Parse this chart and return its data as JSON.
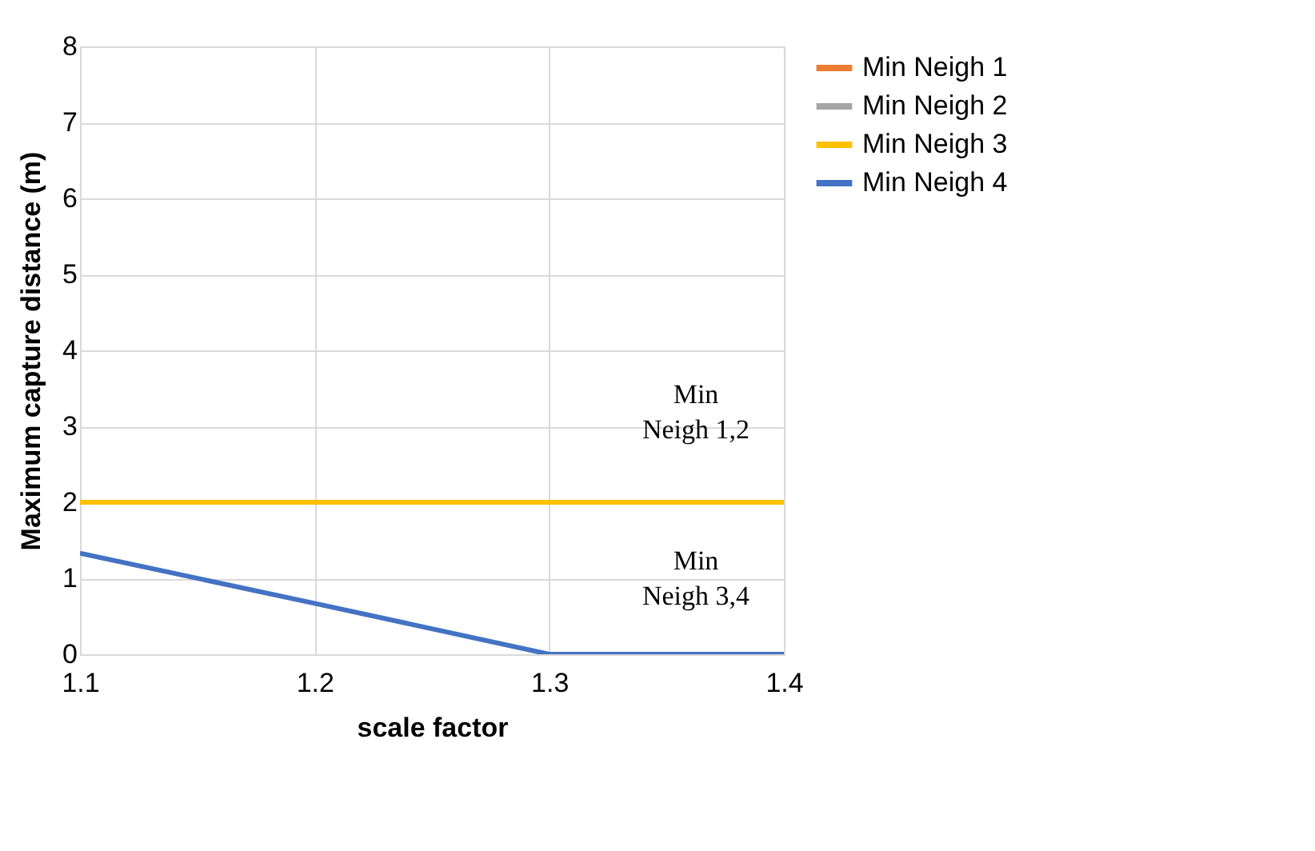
{
  "chart_data": {
    "type": "line",
    "xlabel": "scale factor",
    "ylabel": "Maximum capture distance (m)",
    "x": [
      1.1,
      1.2,
      1.3,
      1.4
    ],
    "xlim": [
      1.1,
      1.4
    ],
    "xticks": [
      1.1,
      1.2,
      1.3,
      1.4
    ],
    "ylim": [
      0,
      8
    ],
    "yticks": [
      0,
      1,
      2,
      3,
      4,
      5,
      6,
      7,
      8
    ],
    "grid": true,
    "legend": "right",
    "marker": "none",
    "line_style": "solid",
    "series": [
      {
        "name": "Min Neigh 1",
        "color": "#ed7d31",
        "values": [
          null,
          null,
          null,
          null
        ]
      },
      {
        "name": "Min Neigh 2",
        "color": "#a5a5a5",
        "values": [
          null,
          null,
          null,
          null
        ]
      },
      {
        "name": "Min Neigh 3",
        "color": "#ffc000",
        "values": [
          2,
          2,
          2,
          2
        ]
      },
      {
        "name": "Min Neigh 4",
        "color": "#4472c4",
        "values": [
          1.33,
          0.67,
          0,
          0
        ]
      }
    ],
    "annotations": [
      "Min Neigh 1,2",
      "Min Neigh 3,4"
    ]
  }
}
